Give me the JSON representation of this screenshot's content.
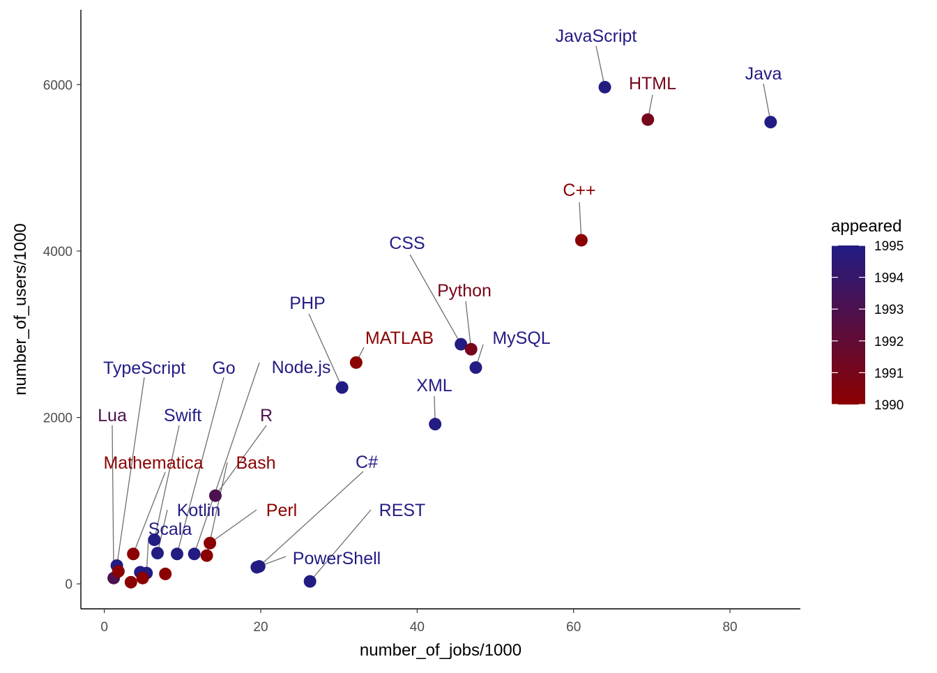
{
  "chart_data": {
    "type": "scatter",
    "title": "",
    "xlabel": "number_of_jobs/1000",
    "ylabel": "number_of_users/1000",
    "xlim": [
      -3,
      89
    ],
    "ylim": [
      -300,
      6900
    ],
    "xticks": [
      0,
      20,
      40,
      60,
      80
    ],
    "yticks": [
      0,
      2000,
      4000,
      6000
    ],
    "grid": false,
    "color_scale": {
      "variable": "appeared",
      "min": 1990,
      "max": 1995,
      "low_color": "#8b0000",
      "high_color": "#221c83",
      "ticks": [
        1990,
        1991,
        1992,
        1993,
        1994,
        1995
      ],
      "legend_position": "right"
    },
    "points": [
      {
        "label": "Java",
        "x": 85.2,
        "y": 5550,
        "appeared": 1995
      },
      {
        "label": "JavaScript",
        "x": 64.0,
        "y": 5970,
        "appeared": 1995
      },
      {
        "label": "HTML",
        "x": 69.5,
        "y": 5580,
        "appeared": 1991
      },
      {
        "label": "C++",
        "x": 61.0,
        "y": 4130,
        "appeared": 1990
      },
      {
        "label": "CSS",
        "x": 45.6,
        "y": 2880,
        "appeared": 1995
      },
      {
        "label": "Python",
        "x": 46.9,
        "y": 2820,
        "appeared": 1991
      },
      {
        "label": "MySQL",
        "x": 47.5,
        "y": 2600,
        "appeared": 1995
      },
      {
        "label": "MATLAB",
        "x": 32.2,
        "y": 2660,
        "appeared": 1990
      },
      {
        "label": "PHP",
        "x": 30.4,
        "y": 2360,
        "appeared": 1995
      },
      {
        "label": "XML",
        "x": 42.3,
        "y": 1920,
        "appeared": 1995
      },
      {
        "label": "C#",
        "x": 19.8,
        "y": 210,
        "appeared": 1995
      },
      {
        "label": "PowerShell",
        "x": 19.5,
        "y": 200,
        "appeared": 1995
      },
      {
        "label": "REST",
        "x": 26.3,
        "y": 30,
        "appeared": 1995
      },
      {
        "label": "Perl",
        "x": 13.5,
        "y": 490,
        "appeared": 1990
      },
      {
        "label": "Bash",
        "x": 13.1,
        "y": 340,
        "appeared": 1990
      },
      {
        "label": "R",
        "x": 14.2,
        "y": 1060,
        "appeared": 1993
      },
      {
        "label": "Node.js",
        "x": 11.5,
        "y": 360,
        "appeared": 1995
      },
      {
        "label": "Go",
        "x": 9.3,
        "y": 360,
        "appeared": 1995
      },
      {
        "label": "Kotlin",
        "x": 6.8,
        "y": 370,
        "appeared": 1995
      },
      {
        "label": "Swift",
        "x": 6.4,
        "y": 530,
        "appeared": 1995
      },
      {
        "label": "Scala",
        "x": 5.4,
        "y": 130,
        "appeared": 1995
      },
      {
        "label": "Mathematica",
        "x": 3.7,
        "y": 360,
        "appeared": 1990
      },
      {
        "label": "TypeScript",
        "x": 1.6,
        "y": 220,
        "appeared": 1995
      },
      {
        "label": "Lua",
        "x": 1.2,
        "y": 70,
        "appeared": 1993
      },
      {
        "label": "",
        "x": 4.6,
        "y": 140,
        "appeared": 1995
      },
      {
        "label": "",
        "x": 7.8,
        "y": 120,
        "appeared": 1990
      },
      {
        "label": "",
        "x": 4.9,
        "y": 70,
        "appeared": 1990
      },
      {
        "label": "",
        "x": 3.4,
        "y": 20,
        "appeared": 1990
      },
      {
        "label": "",
        "x": 1.8,
        "y": 150,
        "appeared": 1990
      }
    ]
  }
}
